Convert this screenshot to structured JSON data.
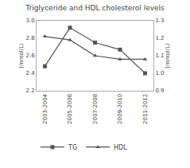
{
  "chart_data": {
    "type": "line",
    "title": "Triglyceride and HDL cholesterol levels",
    "categories": [
      "2003-2004",
      "2005-2006",
      "2007-2008",
      "2009-2010",
      "2011-2012"
    ],
    "series": [
      {
        "name": "TG",
        "color": "#555555",
        "marker": "square",
        "line_style": "solid",
        "values": [
          2.48,
          2.92,
          2.75,
          2.67,
          2.4
        ]
      },
      {
        "name": "HDL",
        "color": "#555555",
        "marker": "triangle-up",
        "line_style": "solid",
        "axis": "y2",
        "values": [
          1.21,
          1.19,
          1.1,
          1.08,
          1.08
        ]
      }
    ],
    "ylabel": "(mmol/L)",
    "y2label": "(mmol/L)",
    "ylim": [
      2.2,
      3.0
    ],
    "yticks": [
      2.2,
      2.4,
      2.6,
      2.8,
      {
        "value": 3.0,
        "label": "3.0"
      }
    ],
    "y2lim": [
      0.9,
      1.3
    ],
    "y2ticks": [
      0.9,
      {
        "value": 1.0,
        "label": "1.0"
      },
      1.1,
      1.2,
      1.3
    ],
    "grid": false,
    "legend": "lower left"
  }
}
